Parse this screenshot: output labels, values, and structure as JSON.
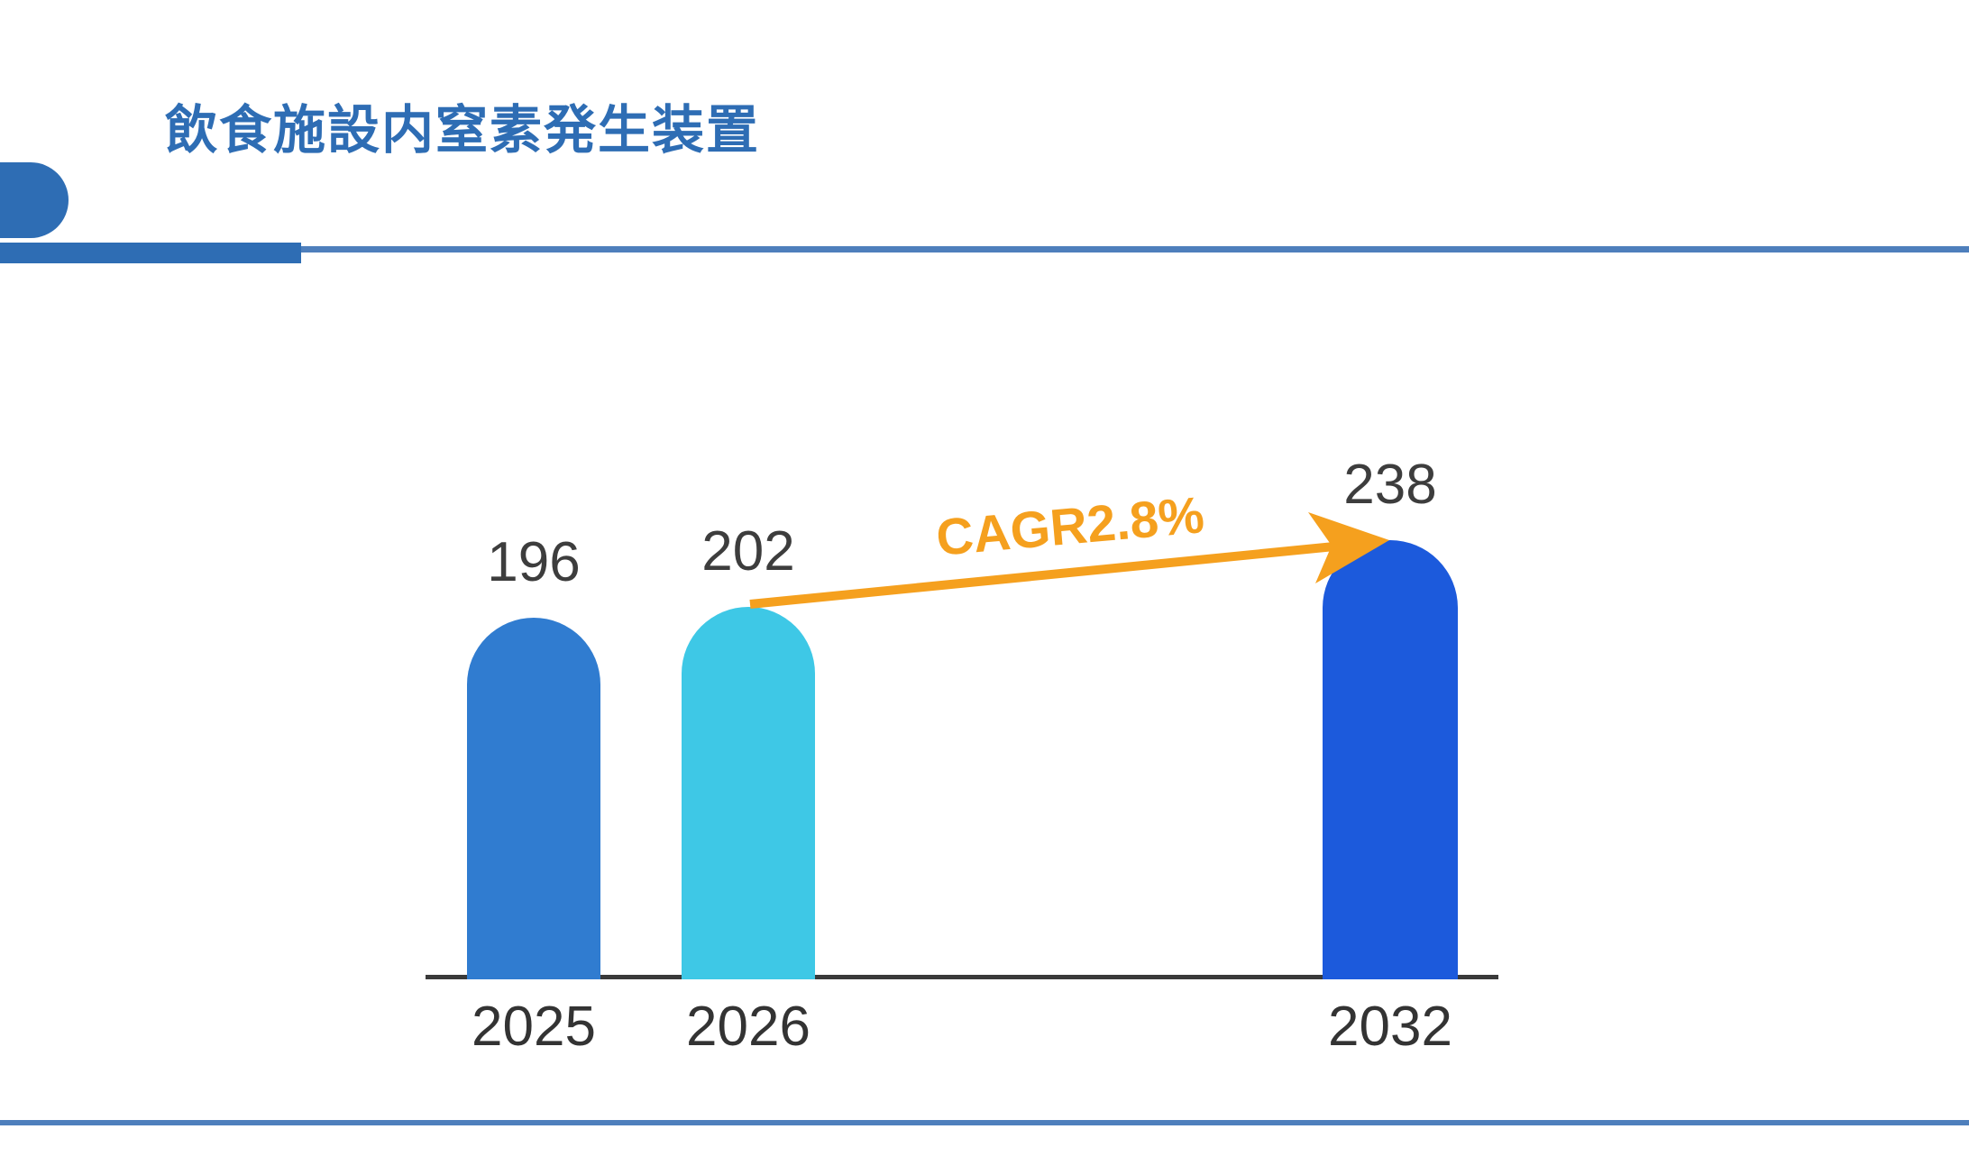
{
  "header": {
    "title": "飲食施設内窒素発生装置",
    "title_color": "#2E6DB4",
    "accent_color": "#2E6DB4",
    "rule_color": "#4E7FBC"
  },
  "footer": {
    "rule_color": "#4E7FBC"
  },
  "chart_data": {
    "type": "bar",
    "title": "飲食施設内窒素発生装置",
    "categories": [
      "2025",
      "2026",
      "2032"
    ],
    "values": [
      196,
      202,
      238
    ],
    "bar_colors": [
      "#307CD0",
      "#3EC8E6",
      "#1C5ADC"
    ],
    "value_label_color": "#3D3D3D",
    "tick_label_color": "#333333",
    "axis_color": "#3A3A3A",
    "xlabel": "",
    "ylabel": "",
    "ylim": [
      0,
      260
    ],
    "grid": false,
    "legend": false,
    "annotation": {
      "label": "CAGR2.8%",
      "color": "#F5A01E",
      "from_category": "2026",
      "to_category": "2032"
    }
  }
}
